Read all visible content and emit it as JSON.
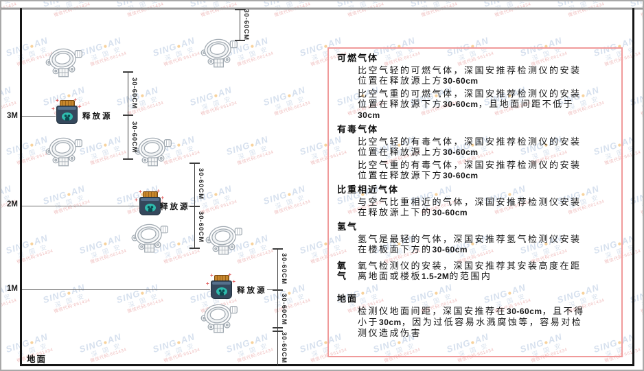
{
  "watermark": {
    "brand_left": "SING",
    "dot": "●",
    "brand_right": "AN",
    "company_cn": "深 国 安",
    "code_line": "微信代码:661434",
    "brand_color": "#aec3de",
    "dot_color": "#f0a63c",
    "code_color": "#e07c7c"
  },
  "diagram": {
    "height_labels": [
      "3M",
      "2M",
      "1M"
    ],
    "ground_label": "地面",
    "release_source_label": "释放源",
    "dimension_label": "30-60CM",
    "icons": {
      "detector": "gas-detector-icon",
      "release_source": "release-source-icon"
    }
  },
  "panel": {
    "border_color": "#f09a9a",
    "sections": [
      {
        "title": "可燃气体",
        "paragraphs": [
          "比空气轻的可燃气体，深国安推荐检测仪的安装位置在释放源上方30-60cm",
          "比空气重的可燃气体，深国安推荐检测仪的安装位置在释放源下方30-60cm，且地面间距不低于30cm"
        ]
      },
      {
        "title": "有毒气体",
        "paragraphs": [
          "比空气轻的有毒气体，深国安推荐检测仪的安装位置在释放源上方30-60cm",
          "比空气重的有毒气体，深国安推荐检测仪的安装位置在释放源下方30-60cm"
        ]
      },
      {
        "title": "比重相近气体",
        "paragraphs": [
          "与空气比重相近的气体，深国安推荐检测仪安装在释放源上下的30-60cm"
        ]
      },
      {
        "title": "氢气",
        "paragraphs": [
          "氢气是最轻的气体，深国安推荐氢气检测仪安装在楼板面下方的30-60cm"
        ]
      },
      {
        "title": "氧气",
        "inline": true,
        "paragraphs": [
          "氧气检测仪的安装，深国安推荐其安装高度在距离地面或楼板1.5-2M的范围内"
        ]
      },
      {
        "title": "地面",
        "paragraphs": [
          "检测仪地面间距，深国安推荐在30-60cm，且不得小于30cm，因为过低容易水溅腐蚀等，容易对检测仪造成伤害"
        ]
      }
    ]
  }
}
